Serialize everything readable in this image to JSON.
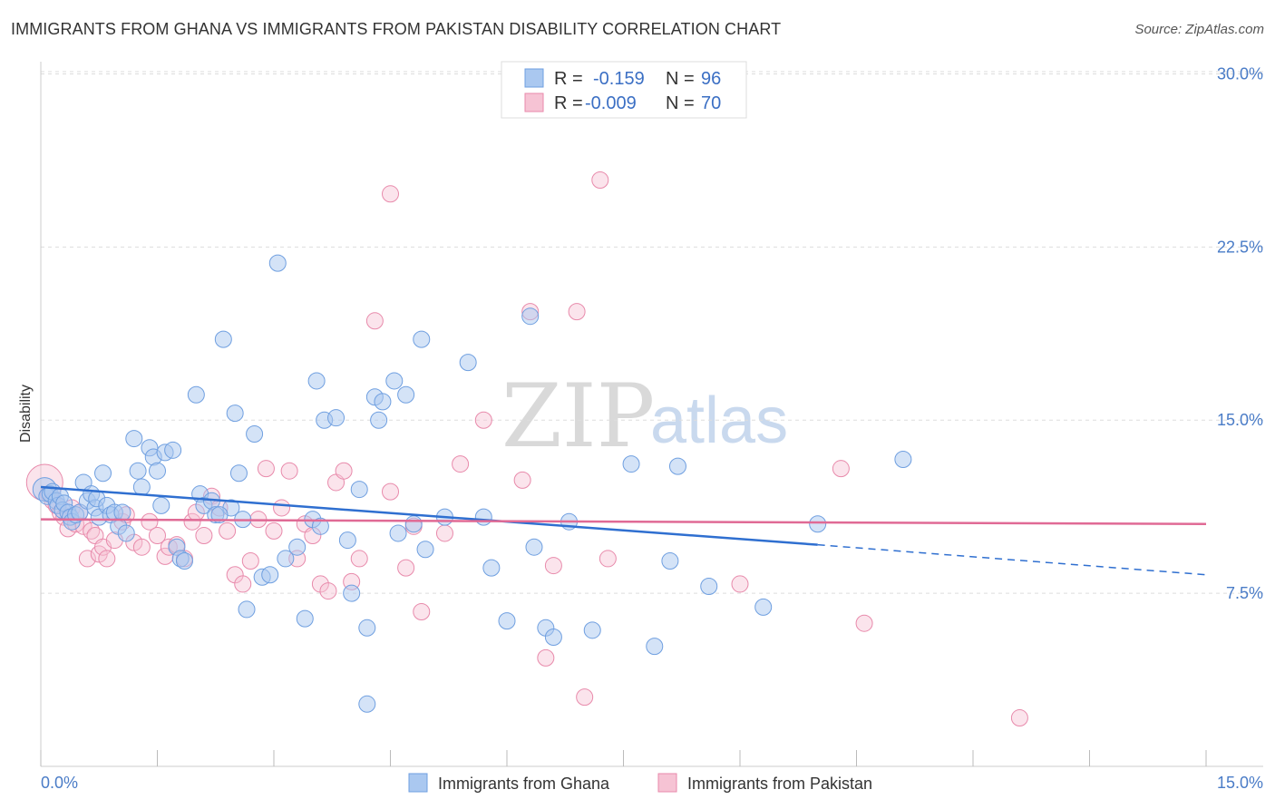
{
  "header": {
    "title": "IMMIGRANTS FROM GHANA VS IMMIGRANTS FROM PAKISTAN DISABILITY CORRELATION CHART",
    "source": "Source: ZipAtlas.com"
  },
  "watermark": {
    "zip": "ZIP",
    "atlas": "atlas"
  },
  "colors": {
    "ghana_fill": "#aac8f0",
    "ghana_stroke": "#6f9fe0",
    "ghana_line": "#2f6fd0",
    "pakistan_fill": "#f6c3d4",
    "pakistan_stroke": "#e88aab",
    "pakistan_line": "#e06a95"
  },
  "legend": {
    "rows": [
      {
        "r_label": "R =",
        "r_value": "-0.159",
        "n_label": "N =",
        "n_value": "96"
      },
      {
        "r_label": "R =",
        "r_value": "-0.009",
        "n_label": "N =",
        "n_value": "70"
      }
    ]
  },
  "bottom_legend": {
    "ghana": "Immigrants from Ghana",
    "pakistan": "Immigrants from Pakistan"
  },
  "chart_data": {
    "type": "scatter",
    "title": "IMMIGRANTS FROM GHANA VS IMMIGRANTS FROM PAKISTAN DISABILITY CORRELATION CHART",
    "xlabel": "",
    "ylabel": "Disability",
    "xlim": [
      0,
      15
    ],
    "ylim": [
      0,
      31
    ],
    "x_tick_labels": [
      "0.0%",
      "15.0%"
    ],
    "y_ticks": [
      7.5,
      15.0,
      22.5,
      30.0
    ],
    "y_tick_labels": [
      "7.5%",
      "15.0%",
      "22.5%",
      "30.0%"
    ],
    "grid": "horizontal dashed",
    "series": [
      {
        "name": "Immigrants from Ghana",
        "R": -0.159,
        "N": 96,
        "trend": {
          "x0": 0.0,
          "y0": 12.1,
          "x1": 10.0,
          "y1": 9.6,
          "dashed_to_x": 15.0,
          "dashed_to_y": 8.3
        },
        "points": [
          [
            0.05,
            12.0
          ],
          [
            0.08,
            11.7
          ],
          [
            0.12,
            11.8
          ],
          [
            0.15,
            11.9
          ],
          [
            0.2,
            11.5
          ],
          [
            0.22,
            11.3
          ],
          [
            0.25,
            11.7
          ],
          [
            0.28,
            11.1
          ],
          [
            0.3,
            11.4
          ],
          [
            0.35,
            11.0
          ],
          [
            0.38,
            10.8
          ],
          [
            0.4,
            10.6
          ],
          [
            0.45,
            10.9
          ],
          [
            0.5,
            11.0
          ],
          [
            0.55,
            12.3
          ],
          [
            0.6,
            11.5
          ],
          [
            0.65,
            11.8
          ],
          [
            0.7,
            11.2
          ],
          [
            0.72,
            11.6
          ],
          [
            0.75,
            10.8
          ],
          [
            0.8,
            12.7
          ],
          [
            0.85,
            11.3
          ],
          [
            0.9,
            10.9
          ],
          [
            0.95,
            11.0
          ],
          [
            1.0,
            10.4
          ],
          [
            1.05,
            11.0
          ],
          [
            1.1,
            10.1
          ],
          [
            1.2,
            14.2
          ],
          [
            1.25,
            12.8
          ],
          [
            1.3,
            12.1
          ],
          [
            1.4,
            13.8
          ],
          [
            1.45,
            13.4
          ],
          [
            1.5,
            12.8
          ],
          [
            1.55,
            11.3
          ],
          [
            1.6,
            13.6
          ],
          [
            1.7,
            13.7
          ],
          [
            1.75,
            9.5
          ],
          [
            1.8,
            9.0
          ],
          [
            1.85,
            8.9
          ],
          [
            2.0,
            16.1
          ],
          [
            2.05,
            11.8
          ],
          [
            2.1,
            11.3
          ],
          [
            2.2,
            11.5
          ],
          [
            2.25,
            10.9
          ],
          [
            2.35,
            18.5
          ],
          [
            2.45,
            11.2
          ],
          [
            2.5,
            15.3
          ],
          [
            2.55,
            12.7
          ],
          [
            2.6,
            10.7
          ],
          [
            2.65,
            6.8
          ],
          [
            2.75,
            14.4
          ],
          [
            2.85,
            8.2
          ],
          [
            2.95,
            8.3
          ],
          [
            3.05,
            21.8
          ],
          [
            3.15,
            9.0
          ],
          [
            3.3,
            9.5
          ],
          [
            3.4,
            6.4
          ],
          [
            3.5,
            10.7
          ],
          [
            3.55,
            16.7
          ],
          [
            3.65,
            15.0
          ],
          [
            3.8,
            15.1
          ],
          [
            3.95,
            9.8
          ],
          [
            4.0,
            7.5
          ],
          [
            4.1,
            12.0
          ],
          [
            4.2,
            6.0
          ],
          [
            4.3,
            16.0
          ],
          [
            4.35,
            15.0
          ],
          [
            4.4,
            15.8
          ],
          [
            4.55,
            16.7
          ],
          [
            4.6,
            10.1
          ],
          [
            4.7,
            16.1
          ],
          [
            4.8,
            10.5
          ],
          [
            4.9,
            18.5
          ],
          [
            4.95,
            9.4
          ],
          [
            5.2,
            10.8
          ],
          [
            5.5,
            17.5
          ],
          [
            5.7,
            10.8
          ],
          [
            5.8,
            8.6
          ],
          [
            6.0,
            6.3
          ],
          [
            6.3,
            19.5
          ],
          [
            6.35,
            9.5
          ],
          [
            6.5,
            6.0
          ],
          [
            6.6,
            5.6
          ],
          [
            6.8,
            10.6
          ],
          [
            7.1,
            5.9
          ],
          [
            7.6,
            13.1
          ],
          [
            7.9,
            5.2
          ],
          [
            8.1,
            8.9
          ],
          [
            8.2,
            13.0
          ],
          [
            8.6,
            7.8
          ],
          [
            9.3,
            6.9
          ],
          [
            10.0,
            10.5
          ],
          [
            11.1,
            13.3
          ],
          [
            3.6,
            10.4
          ],
          [
            4.2,
            2.7
          ],
          [
            2.3,
            10.9
          ]
        ]
      },
      {
        "name": "Immigrants from Pakistan",
        "R": -0.009,
        "N": 70,
        "trend": {
          "x0": 0.0,
          "y0": 10.7,
          "x1": 15.0,
          "y1": 10.5
        },
        "points": [
          [
            0.05,
            12.3
          ],
          [
            0.1,
            11.8
          ],
          [
            0.15,
            11.5
          ],
          [
            0.2,
            11.3
          ],
          [
            0.25,
            11.0
          ],
          [
            0.3,
            10.8
          ],
          [
            0.35,
            10.3
          ],
          [
            0.4,
            11.2
          ],
          [
            0.45,
            10.5
          ],
          [
            0.5,
            11.0
          ],
          [
            0.55,
            10.4
          ],
          [
            0.6,
            9.0
          ],
          [
            0.65,
            10.2
          ],
          [
            0.7,
            10.0
          ],
          [
            0.75,
            9.2
          ],
          [
            0.8,
            9.5
          ],
          [
            0.85,
            9.0
          ],
          [
            0.95,
            9.8
          ],
          [
            1.05,
            10.6
          ],
          [
            1.1,
            10.9
          ],
          [
            1.2,
            9.7
          ],
          [
            1.3,
            9.5
          ],
          [
            1.4,
            10.6
          ],
          [
            1.5,
            10.0
          ],
          [
            1.6,
            9.1
          ],
          [
            1.65,
            9.5
          ],
          [
            1.75,
            9.6
          ],
          [
            1.85,
            9.0
          ],
          [
            1.95,
            10.6
          ],
          [
            2.0,
            11.0
          ],
          [
            2.1,
            10.0
          ],
          [
            2.2,
            11.7
          ],
          [
            2.3,
            11.2
          ],
          [
            2.4,
            10.2
          ],
          [
            2.5,
            8.3
          ],
          [
            2.6,
            7.9
          ],
          [
            2.7,
            8.9
          ],
          [
            2.8,
            10.7
          ],
          [
            2.9,
            12.9
          ],
          [
            3.0,
            10.2
          ],
          [
            3.1,
            11.2
          ],
          [
            3.2,
            12.8
          ],
          [
            3.3,
            9.0
          ],
          [
            3.4,
            10.5
          ],
          [
            3.5,
            10.0
          ],
          [
            3.6,
            7.9
          ],
          [
            3.7,
            7.6
          ],
          [
            3.8,
            12.3
          ],
          [
            3.9,
            12.8
          ],
          [
            4.0,
            8.0
          ],
          [
            4.1,
            9.0
          ],
          [
            4.3,
            19.3
          ],
          [
            4.5,
            11.9
          ],
          [
            4.7,
            8.6
          ],
          [
            4.8,
            10.4
          ],
          [
            4.9,
            6.7
          ],
          [
            4.5,
            24.8
          ],
          [
            5.2,
            10.1
          ],
          [
            5.4,
            13.1
          ],
          [
            5.7,
            15.0
          ],
          [
            6.2,
            12.4
          ],
          [
            6.3,
            19.7
          ],
          [
            6.5,
            4.7
          ],
          [
            6.6,
            8.7
          ],
          [
            6.9,
            19.7
          ],
          [
            7.0,
            3.0
          ],
          [
            7.2,
            25.4
          ],
          [
            7.3,
            9.0
          ],
          [
            9.0,
            7.9
          ],
          [
            10.6,
            6.2
          ]
        ]
      }
    ],
    "extra_points_pakistan": [
      [
        10.3,
        12.9
      ],
      [
        12.6,
        2.1
      ]
    ]
  }
}
